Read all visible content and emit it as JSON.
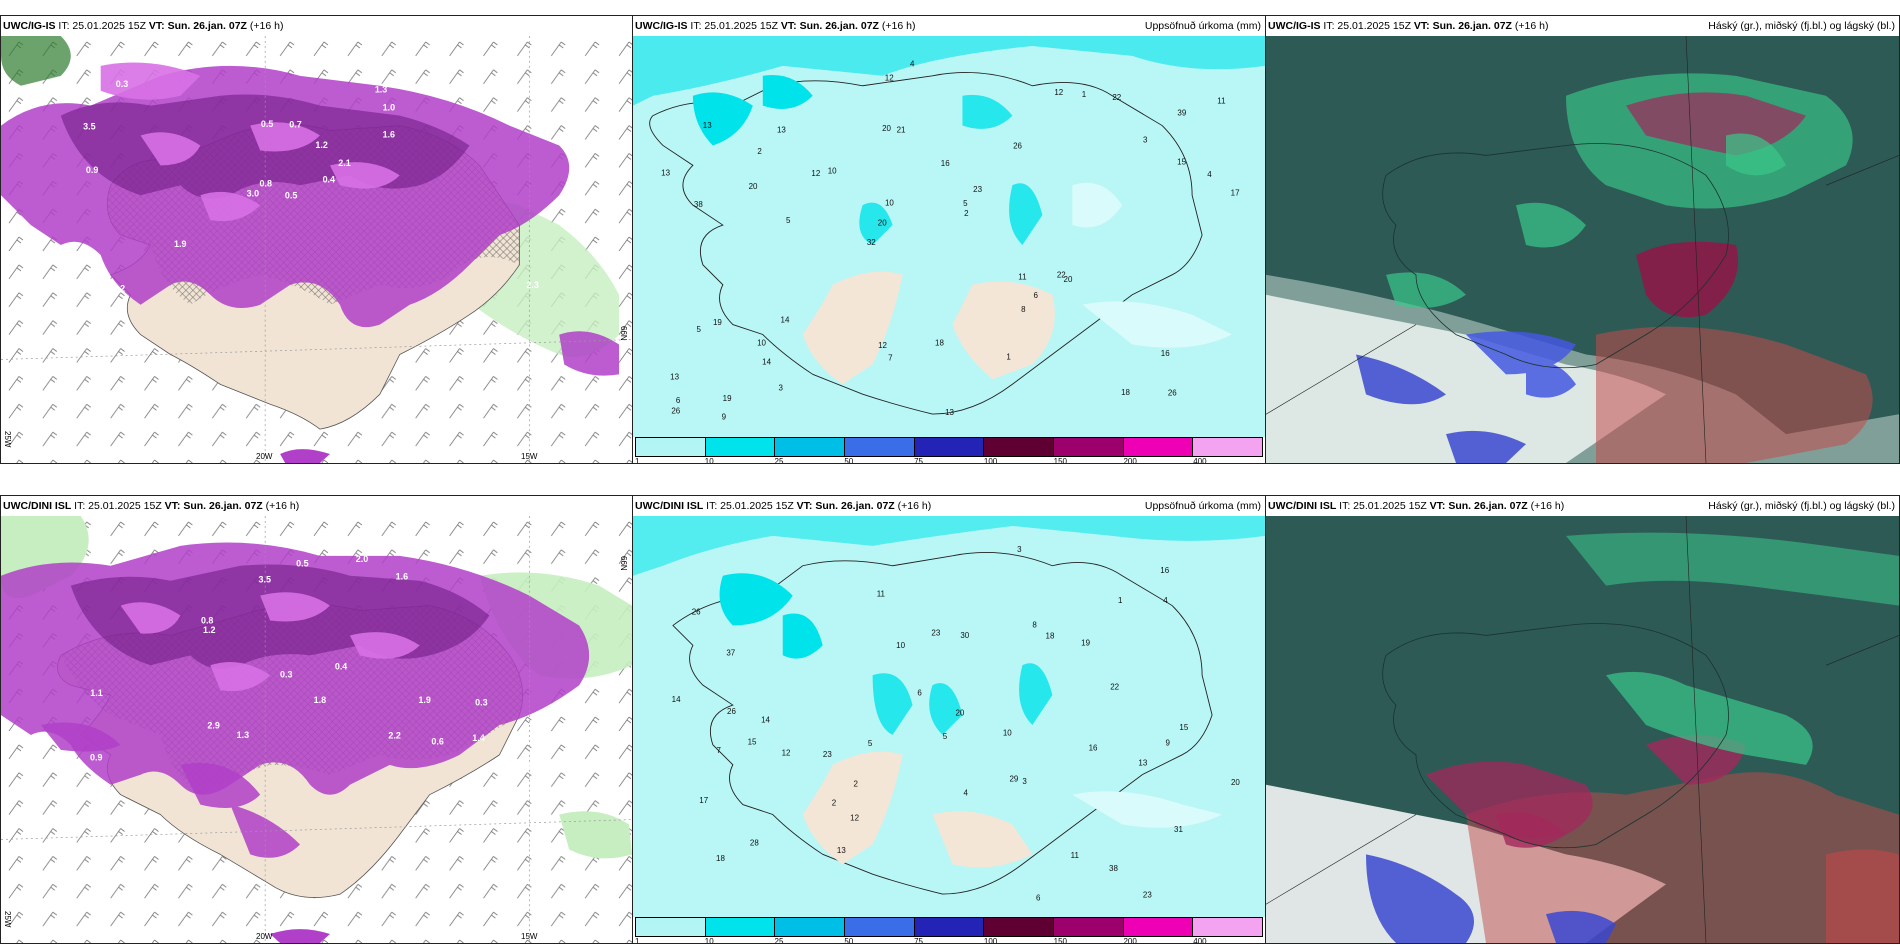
{
  "rows": [
    {
      "model": "UWC/IG-IS",
      "it": "IT: 25.01.2025 15Z",
      "vt": "VT: Sun. 26.jan. 07Z",
      "lead": "(+16 h)",
      "lon_labels": [
        "20W",
        "15W"
      ],
      "lat_labels": [
        "66N",
        "25W"
      ],
      "precip_values": [
        "26",
        "38",
        "39",
        "32",
        "26",
        "19",
        "20",
        "16",
        "19",
        "10",
        "13",
        "14",
        "21",
        "23",
        "20",
        "13",
        "12",
        "17",
        "11",
        "15",
        "20",
        "12",
        "10",
        "13",
        "12",
        "14",
        "18",
        "16",
        "22",
        "13",
        "12",
        "20",
        "8",
        "3",
        "4",
        "5",
        "6",
        "7",
        "2",
        "5",
        "3",
        "11",
        "6",
        "1",
        "10",
        "9",
        "26",
        "18",
        "22",
        "4",
        "5",
        "13",
        "2",
        "1"
      ],
      "precip_markers": [
        "0.5",
        "3.5",
        "0.8",
        "1.4",
        "2.1",
        "1.9",
        "1.3",
        "0.7",
        "1.0",
        "0.4",
        "0.3",
        "2.3",
        "0.9",
        "0.6",
        "3.0",
        "1.6",
        "0.2",
        "0.5",
        "1.2"
      ]
    },
    {
      "model": "UWC/DINI ISL",
      "it": "IT: 25.01.2025 15Z",
      "vt": "VT: Sun. 26.jan. 07Z",
      "lead": "(+16 h)",
      "lon_labels": [
        "20W",
        "15W"
      ],
      "lat_labels": [
        "66N",
        "25W"
      ],
      "precip_values": [
        "23",
        "15",
        "29",
        "26",
        "31",
        "37",
        "28",
        "23",
        "19",
        "23",
        "18",
        "38",
        "12",
        "11",
        "10",
        "17",
        "16",
        "20",
        "14",
        "18",
        "16",
        "30",
        "22",
        "20",
        "15",
        "26",
        "12",
        "5",
        "6",
        "4",
        "3",
        "7",
        "2",
        "8",
        "10",
        "13",
        "9",
        "11",
        "1",
        "6",
        "2",
        "4",
        "13",
        "3",
        "5",
        "14"
      ],
      "precip_markers": [
        "0.9",
        "0.3",
        "0.4",
        "1.8",
        "3.5",
        "2.0",
        "1.4",
        "1.6",
        "0.6",
        "2.9",
        "0.7",
        "1.2",
        "1.3",
        "0.5",
        "2.2",
        "0.8",
        "1.9",
        "1.1",
        "0.3"
      ]
    }
  ],
  "precip_title": "Uppsöfnuð úrkoma (mm)",
  "cloud_title": "Háský (gr.), miðský (fj.bl.) og lágský (bl.)",
  "colorbar": {
    "labels": [
      "1",
      "10",
      "25",
      "50",
      "75",
      "100",
      "150",
      "200",
      "400"
    ],
    "colors": [
      "#b3f5f5",
      "#00e3ea",
      "#00bfe6",
      "#3a6ee8",
      "#2323b5",
      "#5e0032",
      "#9c006d",
      "#ee00b5",
      "#f3a3f0"
    ]
  },
  "colors": {
    "ocean_precip": "#b9f6f6",
    "land_dry": "#f4e6d6",
    "land_precip": "#e7d6c0",
    "precip_purple": "#b040c8",
    "precip_dark": "#6a1880",
    "cloud_high": "#2b5550",
    "cloud_mid": "#3bc88a",
    "cloud_low": "#a3285b"
  }
}
